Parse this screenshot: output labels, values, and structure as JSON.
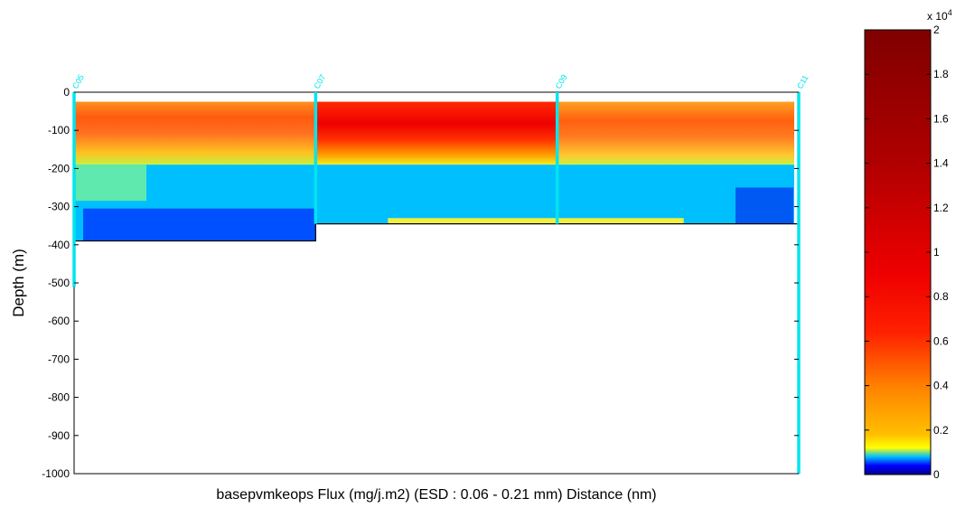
{
  "chart_data": {
    "type": "heatmap",
    "title": "",
    "xlabel": "basepvmkeops  Flux   (mg/j.m2) (ESD : 0.06 - 0.21 mm) Distance (nm)",
    "ylabel": "Depth (m)",
    "ylim": [
      -1000,
      0
    ],
    "yticks": [
      0,
      -100,
      -200,
      -300,
      -400,
      -500,
      -600,
      -700,
      -800,
      -900,
      -1000
    ],
    "stations": [
      {
        "name": "C05",
        "bottom_depth": -390
      },
      {
        "name": "C07",
        "bottom_depth": -345
      },
      {
        "name": "C09",
        "bottom_depth": -345
      },
      {
        "name": "C11",
        "bottom_depth": -345
      }
    ],
    "colorbar": {
      "clim": [
        0,
        20000
      ],
      "ticks": [
        0,
        0.2,
        0.4,
        0.6,
        0.8,
        1,
        1.2,
        1.4,
        1.6,
        1.8,
        2
      ],
      "tick_labels": [
        "0",
        "0.2",
        "0.4",
        "0.6",
        "0.8",
        "1",
        "1.2",
        "1.4",
        "1.6",
        "1.8",
        "2"
      ],
      "exponent_label": "x 10",
      "exponent_power": "4",
      "colormap": "jet"
    },
    "layers": [
      {
        "depth_range": [
          -25,
          -190
        ],
        "values_by_station": [
          2500,
          6000,
          6200,
          2300
        ]
      },
      {
        "depth_range": [
          -190,
          -345
        ],
        "values_by_station": [
          100,
          80,
          80,
          60
        ]
      }
    ]
  }
}
